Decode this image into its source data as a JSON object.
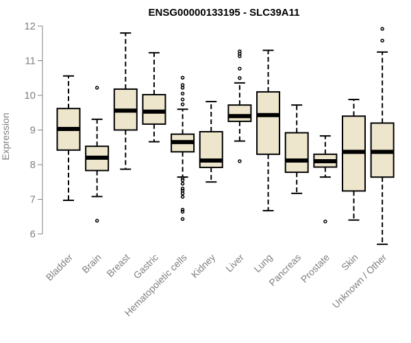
{
  "chart_data": {
    "type": "boxplot",
    "title": "ENSG00000133195 - SLC39A11",
    "xlabel": "",
    "ylabel": "Expression",
    "ylim": [
      5.5,
      12.2
    ],
    "yticks": [
      6,
      7,
      8,
      9,
      10,
      11,
      12
    ],
    "colors": {
      "box_fill": "#ede6cc",
      "box_stroke": "#000000",
      "axis": "#808080",
      "title": "#000000"
    },
    "categories": [
      "Bladder",
      "Brain",
      "Breast",
      "Gastric",
      "Hematopoietic cells",
      "Kidney",
      "Liver",
      "Lung",
      "Pancreas",
      "Prostate",
      "Skin",
      "Unknown / Other"
    ],
    "boxes": [
      {
        "category": "Bladder",
        "whisker_low": 6.97,
        "q1": 8.42,
        "median": 9.03,
        "q3": 9.62,
        "whisker_high": 10.56,
        "outliers": []
      },
      {
        "category": "Brain",
        "whisker_low": 7.08,
        "q1": 7.83,
        "median": 8.2,
        "q3": 8.53,
        "whisker_high": 9.31,
        "outliers": [
          6.38,
          10.22
        ]
      },
      {
        "category": "Breast",
        "whisker_low": 7.87,
        "q1": 9.0,
        "median": 9.56,
        "q3": 10.18,
        "whisker_high": 11.8,
        "outliers": []
      },
      {
        "category": "Gastric",
        "whisker_low": 8.66,
        "q1": 9.17,
        "median": 9.53,
        "q3": 10.02,
        "whisker_high": 11.23,
        "outliers": []
      },
      {
        "category": "Hematopoietic cells",
        "whisker_low": 7.64,
        "q1": 8.37,
        "median": 8.65,
        "q3": 8.88,
        "whisker_high": 9.6,
        "outliers": [
          6.43,
          6.64,
          6.7,
          7.07,
          7.17,
          7.25,
          7.31,
          7.45,
          7.55,
          7.62,
          9.74,
          9.88,
          10.05,
          10.22,
          10.3,
          10.51
        ]
      },
      {
        "category": "Kidney",
        "whisker_low": 7.5,
        "q1": 7.92,
        "median": 8.12,
        "q3": 8.95,
        "whisker_high": 9.82,
        "outliers": []
      },
      {
        "category": "Liver",
        "whisker_low": 8.68,
        "q1": 9.25,
        "median": 9.4,
        "q3": 9.72,
        "whisker_high": 10.36,
        "outliers": [
          8.1,
          10.5,
          10.77,
          11.13,
          11.2,
          11.27
        ]
      },
      {
        "category": "Lung",
        "whisker_low": 6.67,
        "q1": 8.3,
        "median": 9.43,
        "q3": 10.1,
        "whisker_high": 11.3,
        "outliers": []
      },
      {
        "category": "Pancreas",
        "whisker_low": 7.17,
        "q1": 7.78,
        "median": 8.12,
        "q3": 8.92,
        "whisker_high": 9.72,
        "outliers": []
      },
      {
        "category": "Prostate",
        "whisker_low": 7.64,
        "q1": 7.93,
        "median": 8.1,
        "q3": 8.3,
        "whisker_high": 8.83,
        "outliers": [
          6.36
        ]
      },
      {
        "category": "Skin",
        "whisker_low": 6.4,
        "q1": 7.24,
        "median": 8.37,
        "q3": 9.4,
        "whisker_high": 9.88,
        "outliers": []
      },
      {
        "category": "Unknown / Other",
        "whisker_low": 5.7,
        "q1": 7.64,
        "median": 8.37,
        "q3": 9.2,
        "whisker_high": 11.25,
        "outliers": [
          11.58,
          11.92
        ]
      }
    ]
  }
}
